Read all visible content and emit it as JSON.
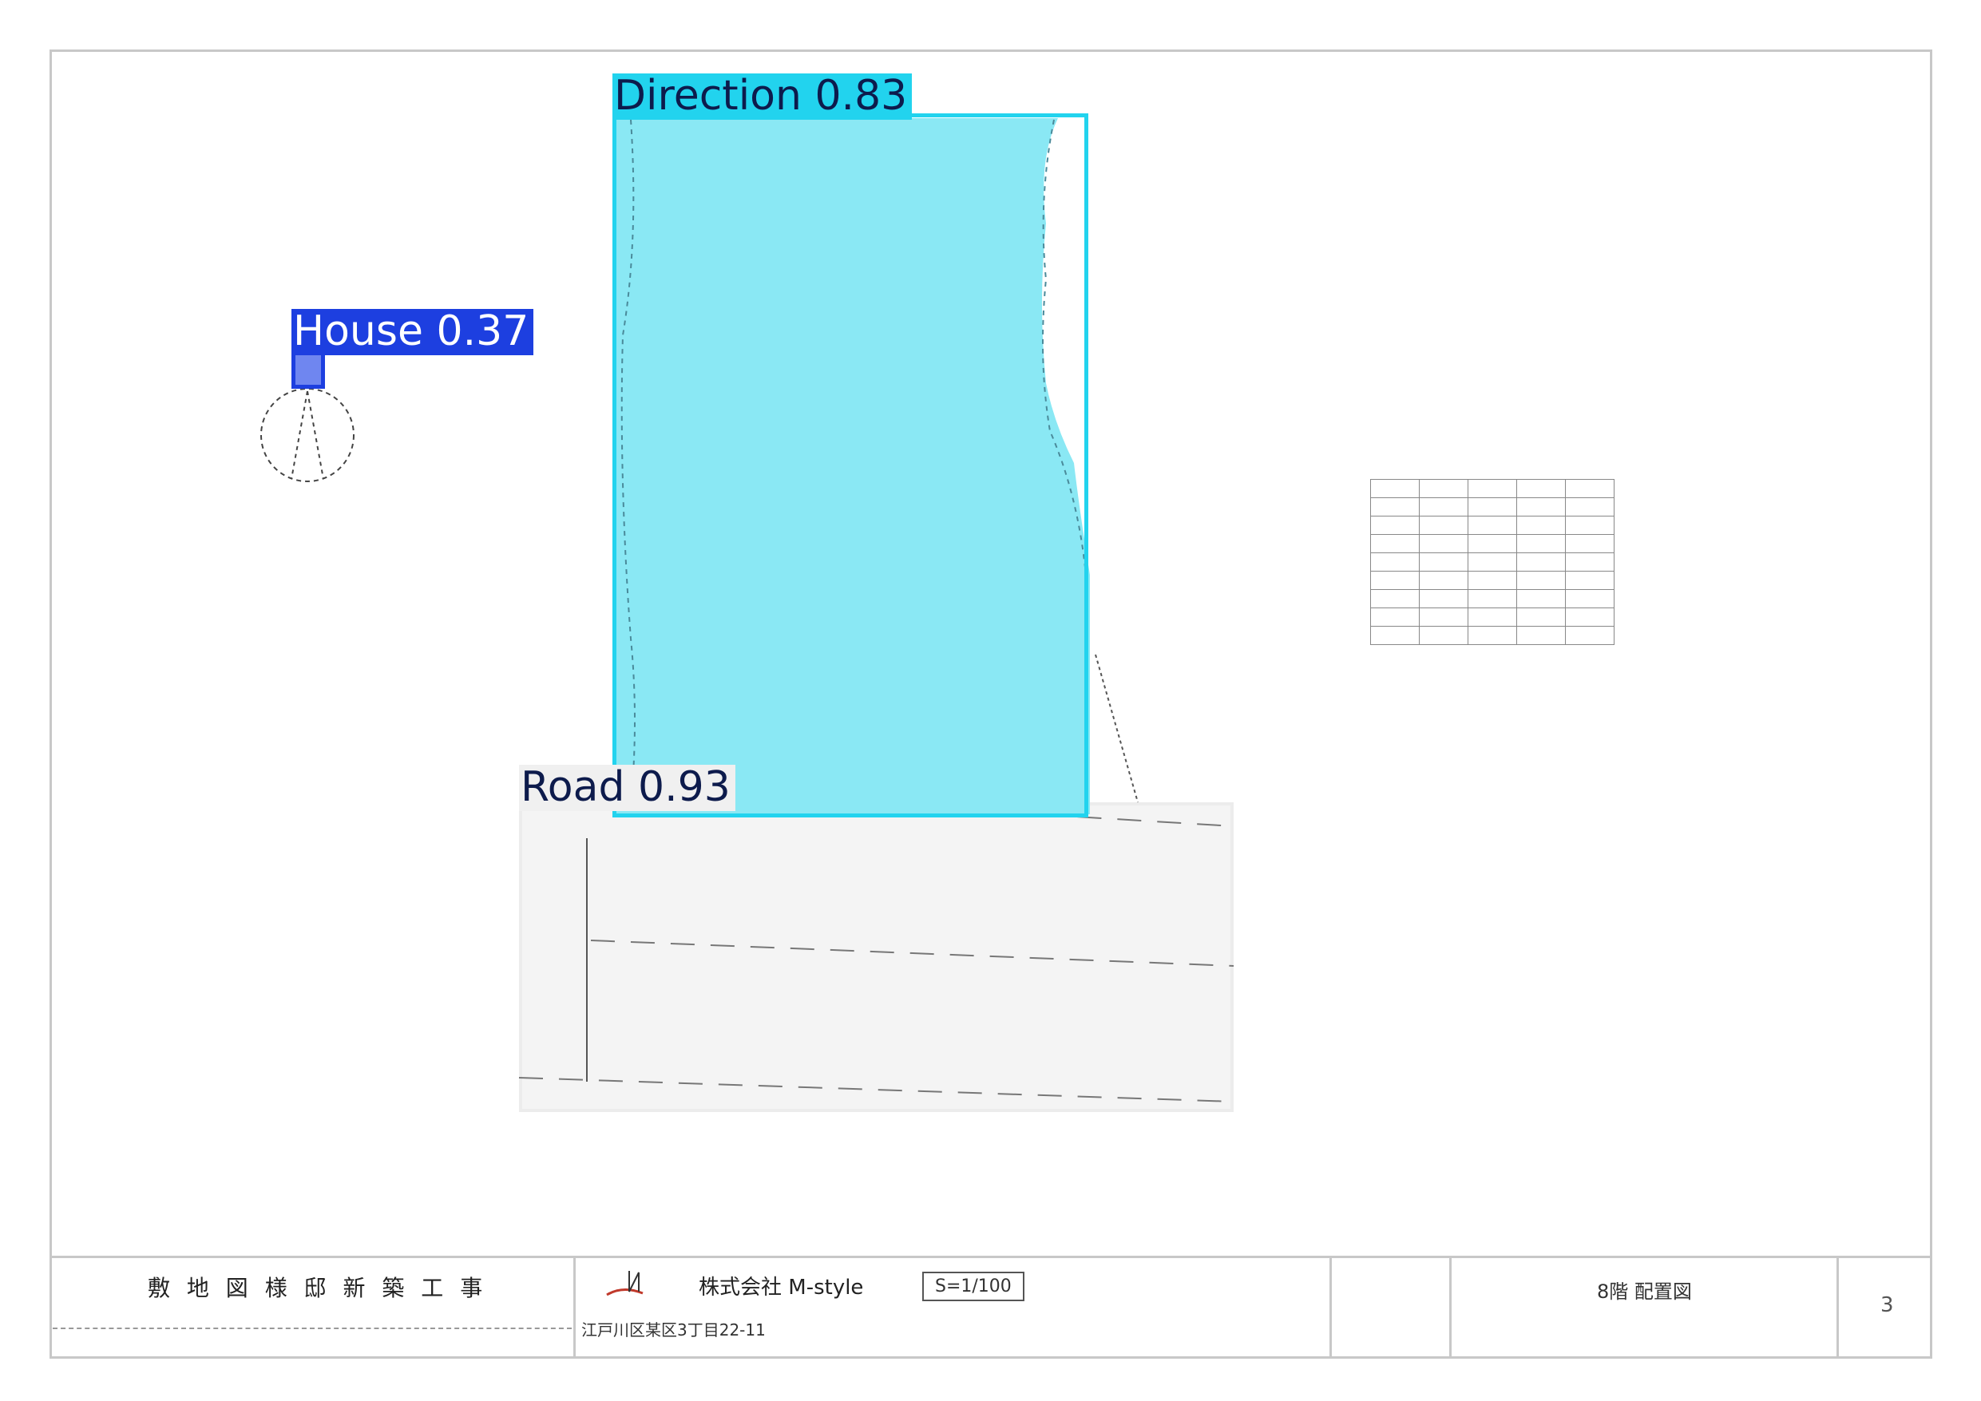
{
  "detections": [
    {
      "label": "Direction",
      "score": "0.83",
      "color": "#22d3ee",
      "fill": "#8ae8f4",
      "text_color": "#0d1b4c"
    },
    {
      "label": "House",
      "score": "0.37",
      "color": "#1d3fe0",
      "fill": "#6f86f0",
      "text_color": "#ffffff"
    },
    {
      "label": "Road",
      "score": "0.93",
      "color": "#f0f0f0",
      "fill": "#f4f4f4",
      "text_color": "#0d1b4c"
    }
  ],
  "title_block": {
    "project_name": "敷 地 図 様 邸 新 築 工 事",
    "company_name": "株式会社 M-style",
    "scale_box": "S=1/100",
    "address": "江戸川区某区3丁目22-11",
    "drawing_title": "8階 配置図",
    "sheet_number": "3"
  },
  "colors": {
    "border": "#c8c8c8",
    "direction": "#22d3ee",
    "house": "#1d3fe0",
    "road": "#f0f0f0"
  }
}
